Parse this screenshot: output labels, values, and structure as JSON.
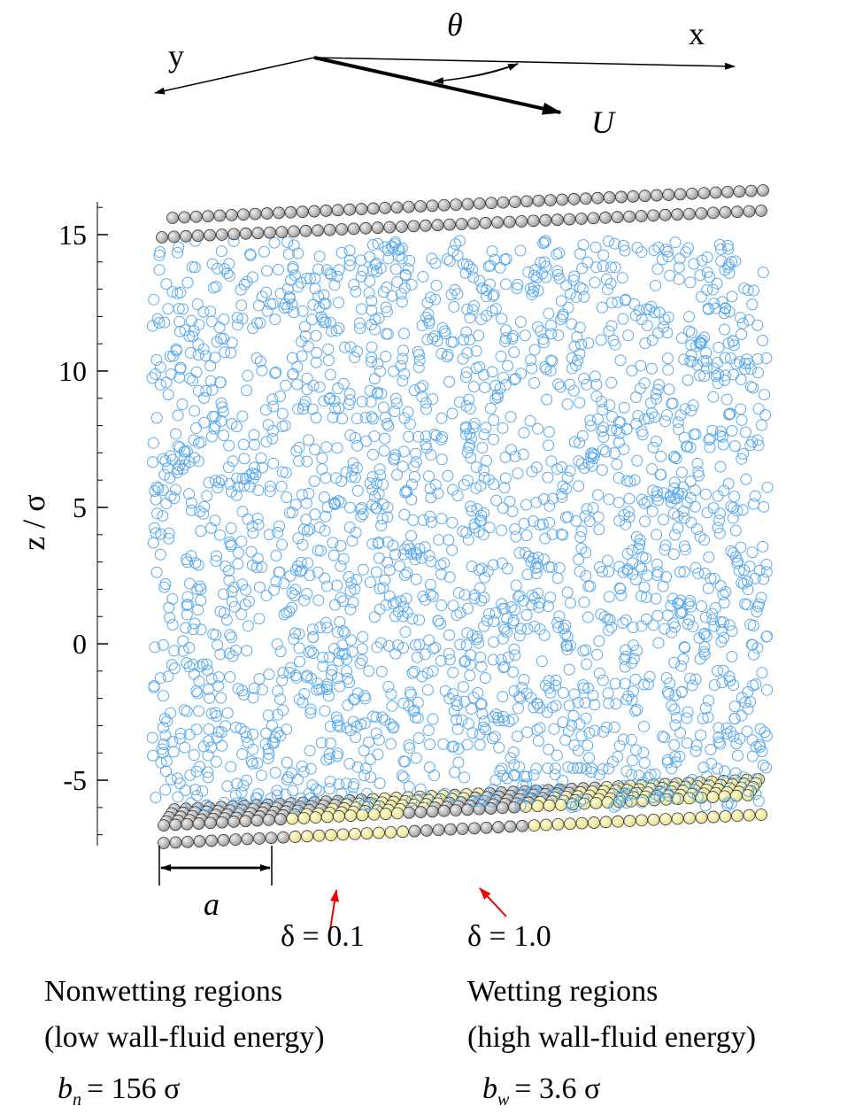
{
  "diagram": {
    "direction_labels": {
      "y": "y",
      "theta": "θ",
      "x": "x",
      "velocity": "U"
    },
    "axis": {
      "label": "z / σ",
      "ylim": [
        -7.4,
        16.2
      ],
      "yticks": [
        -5,
        0,
        5,
        10,
        15
      ]
    },
    "width_label": "a",
    "pointers": [
      {
        "label": "δ = 0.1"
      },
      {
        "label": "δ = 1.0"
      }
    ],
    "regions": [
      {
        "title": "Nonwetting regions",
        "note": "(low wall-fluid energy)",
        "slip": {
          "symbol": "b",
          "subscript": "n",
          "value": "= 156 σ"
        }
      },
      {
        "title": "Wetting regions",
        "note": "(high wall-fluid energy)",
        "slip": {
          "symbol": "b",
          "subscript": "w",
          "value": "= 3.6 σ"
        }
      }
    ]
  }
}
